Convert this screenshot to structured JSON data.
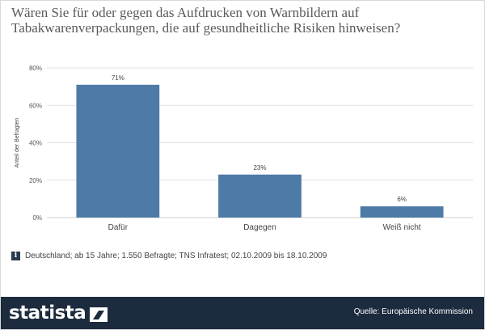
{
  "chart_data": {
    "type": "bar",
    "title": "Wären Sie für oder gegen das Aufdrucken von Warnbildern auf Tabakwarenverpackungen, die auf gesundheitliche Risiken hinweisen?",
    "categories": [
      "Dafür",
      "Dagegen",
      "Weiß nicht"
    ],
    "values": [
      71,
      23,
      6
    ],
    "value_labels": [
      "71%",
      "23%",
      "6%"
    ],
    "ylabel": "Anteil der Befragten",
    "xlabel": "",
    "ylim": [
      0,
      80
    ],
    "yticks": [
      0,
      20,
      40,
      60,
      80
    ],
    "ytick_labels": [
      "0%",
      "20%",
      "40%",
      "60%",
      "80%"
    ],
    "grid": true,
    "bar_color": "#4d7aa6"
  },
  "note": "Deutschland; ab 15 Jahre; 1.550 Befragte; TNS Infratest; 02.10.2009 bis 18.10.2009",
  "footer": {
    "brand": "statista",
    "source": "Quelle: Europäische Kommission"
  },
  "colors": {
    "footer_bg": "#1c2b3e",
    "grid": "#e0e0e0"
  }
}
